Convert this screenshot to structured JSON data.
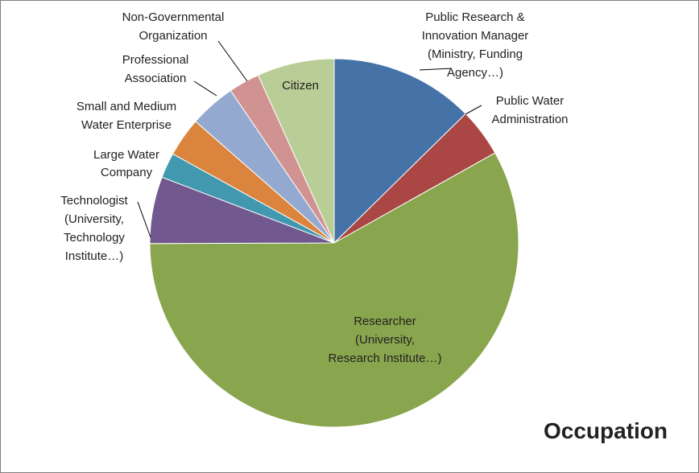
{
  "chart_data": {
    "type": "pie",
    "title": "Occupation",
    "start_angle_deg": 0,
    "direction": "clockwise",
    "legend": "none",
    "slices": [
      {
        "label": "Public Research & Innovation Manager (Ministry, Funding Agency…)",
        "value": 12.5,
        "color": "#4572A7"
      },
      {
        "label": "Public Water Administration",
        "value": 4.2,
        "color": "#AA4643"
      },
      {
        "label": "Researcher (University, Research Institute…)",
        "value": 57.5,
        "color": "#89A54E"
      },
      {
        "label": "Technologist (University, Technology Institute…)",
        "value": 5.8,
        "color": "#71588F"
      },
      {
        "label": "Large Water Company",
        "value": 2.2,
        "color": "#4198AF"
      },
      {
        "label": "Small and Medium Water Enterprise",
        "value": 3.4,
        "color": "#DB843D"
      },
      {
        "label": "Professional Association",
        "value": 4.0,
        "color": "#93A9CF"
      },
      {
        "label": "Non-Governmental Organization",
        "value": 2.7,
        "color": "#D19392"
      },
      {
        "label": "Citizen",
        "value": 6.7,
        "color": "#B9CD96"
      }
    ],
    "label_lines": [
      [
        "Public Research &",
        "Innovation Manager",
        "(Ministry, Funding",
        "Agency…)"
      ],
      [
        "Public Water",
        "Administration"
      ],
      [
        "Researcher",
        "(University,",
        "Research Institute…)"
      ],
      [
        "Technologist",
        "(University,",
        "Technology",
        "Institute…)"
      ],
      [
        "Large Water",
        "Company"
      ],
      [
        "Small and Medium",
        "Water Enterprise"
      ],
      [
        "Professional",
        "Association"
      ],
      [
        "Non-Governmental",
        "Organization"
      ],
      [
        "Citizen"
      ]
    ]
  }
}
